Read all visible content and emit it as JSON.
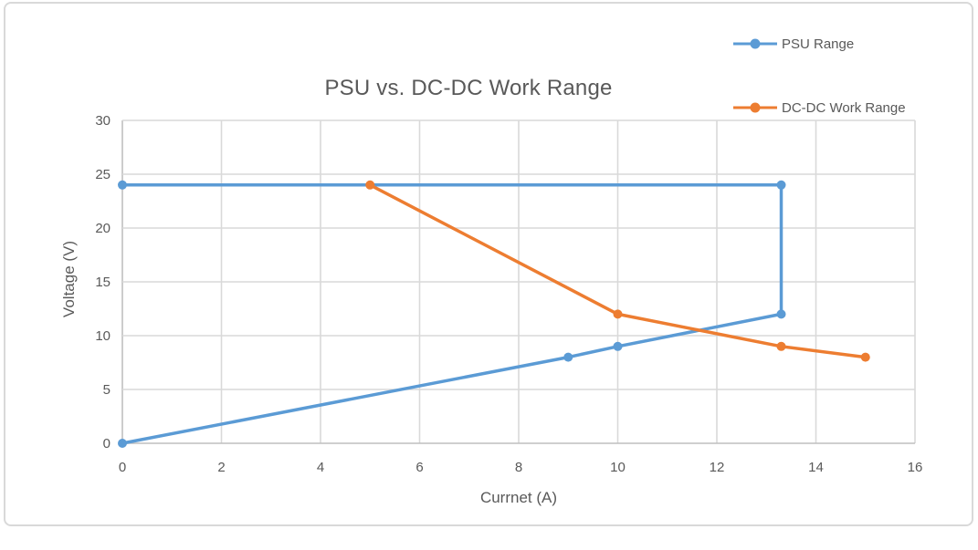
{
  "frame": {
    "background": "#ffffff",
    "border_color": "#d9d9d9"
  },
  "chart_data": {
    "type": "line",
    "title": "PSU vs. DC-DC Work Range",
    "xlabel": "Currnet (A)",
    "ylabel": "Voltage (V)",
    "xlim": [
      0,
      16
    ],
    "ylim": [
      0,
      30
    ],
    "xticks": [
      0,
      2,
      4,
      6,
      8,
      10,
      12,
      14,
      16
    ],
    "yticks": [
      0,
      5,
      10,
      15,
      20,
      25,
      30
    ],
    "grid": true,
    "legend_position": "top-right",
    "series": [
      {
        "name": "PSU Range",
        "color": "#5b9bd5",
        "marker": "circle",
        "points": [
          [
            0,
            0
          ],
          [
            9,
            8
          ],
          [
            10,
            9
          ],
          [
            13.3,
            12
          ],
          [
            13.3,
            24
          ],
          [
            0,
            24
          ]
        ]
      },
      {
        "name": "DC-DC Work Range",
        "color": "#ed7d31",
        "marker": "circle",
        "points": [
          [
            5,
            24
          ],
          [
            10,
            12
          ],
          [
            13.3,
            9
          ],
          [
            15,
            8
          ]
        ]
      }
    ],
    "styles": {
      "grid_color": "#d9d9d9",
      "axis_color": "#bfbfbf",
      "text_color": "#595959",
      "title_color": "#595959"
    }
  }
}
